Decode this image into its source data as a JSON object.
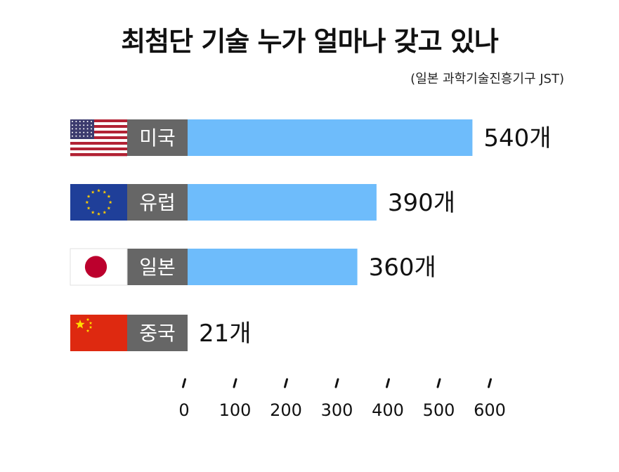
{
  "chart_data": {
    "type": "bar",
    "orientation": "horizontal",
    "title": "최첨단 기술 누가 얼마나 갖고 있나",
    "subtitle": "(일본 과학기술진흥기구 JST)",
    "categories": [
      "미국",
      "유럽",
      "일본",
      "중국"
    ],
    "values": [
      540,
      390,
      360,
      21
    ],
    "value_labels": [
      "540개",
      "390개",
      "360개",
      "21개"
    ],
    "flags": [
      "us-flag-icon",
      "eu-flag-icon",
      "japan-flag-icon",
      "china-flag-icon"
    ],
    "xlim": [
      0,
      600
    ],
    "xticks": [
      0,
      100,
      200,
      300,
      400,
      500,
      600
    ],
    "grid": false,
    "legend": "none",
    "colors": {
      "bar": "#6ebcfb",
      "label_box": "#666666",
      "text": "#111111"
    }
  }
}
